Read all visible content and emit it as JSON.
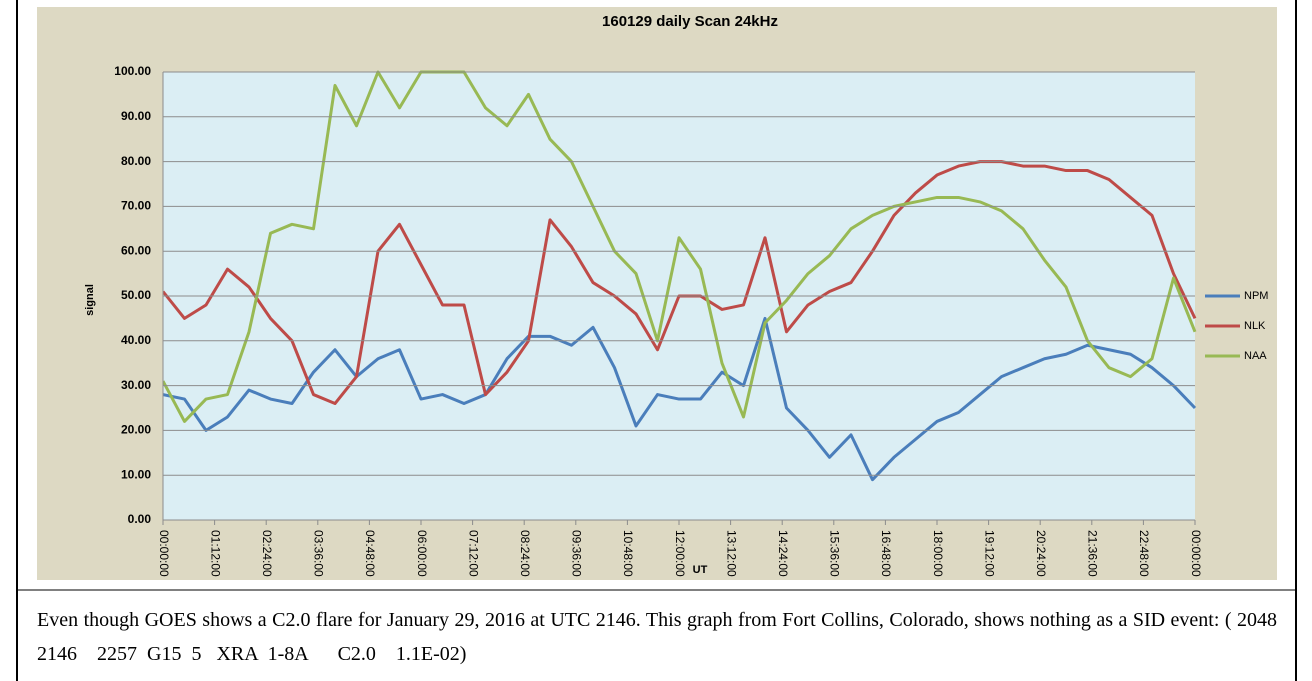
{
  "chart_data": {
    "type": "line",
    "title": "160129 daily Scan 24kHz",
    "ylabel": "signal",
    "xlabel": "UT",
    "x": [
      0,
      0.5,
      1,
      1.5,
      2,
      2.5,
      3,
      3.5,
      4,
      4.5,
      5,
      5.5,
      6,
      6.5,
      7,
      7.5,
      8,
      8.5,
      9,
      9.5,
      10,
      10.5,
      11,
      11.5,
      12,
      12.5,
      13,
      13.5,
      14,
      14.5,
      15,
      15.5,
      16,
      16.5,
      17,
      17.5,
      18,
      18.5,
      19,
      19.5,
      20,
      20.5,
      21,
      21.5,
      22,
      22.5,
      23,
      23.5,
      24
    ],
    "series": [
      {
        "name": "NPM",
        "color": "#4a7ebb",
        "values": [
          28,
          27,
          20,
          23,
          29,
          27,
          26,
          33,
          38,
          32,
          36,
          38,
          27,
          28,
          26,
          28,
          36,
          41,
          41,
          39,
          43,
          34,
          21,
          28,
          27,
          27,
          33,
          30,
          45,
          25,
          20,
          14,
          19,
          9,
          14,
          18,
          22,
          24,
          28,
          32,
          34,
          36,
          37,
          39,
          38,
          37,
          34,
          30,
          25
        ]
      },
      {
        "name": "NLK",
        "color": "#be4b48",
        "values": [
          51,
          45,
          48,
          56,
          52,
          45,
          40,
          28,
          26,
          32,
          60,
          66,
          57,
          48,
          48,
          28,
          33,
          40,
          67,
          61,
          53,
          50,
          46,
          38,
          50,
          50,
          47,
          48,
          63,
          42,
          48,
          51,
          53,
          60,
          68,
          73,
          77,
          79,
          80,
          80,
          79,
          79,
          78,
          78,
          76,
          72,
          68,
          55,
          45
        ]
      },
      {
        "name": "NAA",
        "color": "#98b954",
        "values": [
          31,
          22,
          27,
          28,
          42,
          64,
          66,
          65,
          97,
          88,
          100,
          92,
          100,
          100,
          100,
          92,
          88,
          95,
          85,
          80,
          70,
          60,
          55,
          40,
          63,
          56,
          35,
          23,
          44,
          49,
          55,
          59,
          65,
          68,
          70,
          71,
          72,
          72,
          71,
          69,
          65,
          58,
          52,
          40,
          34,
          32,
          36,
          54,
          42
        ]
      }
    ],
    "xlim": [
      0,
      24
    ],
    "xticks": [
      {
        "value": 0,
        "label": "00:00:00"
      },
      {
        "value": 1.2,
        "label": "01:12:00"
      },
      {
        "value": 2.4,
        "label": "02:24:00"
      },
      {
        "value": 3.6,
        "label": "03:36:00"
      },
      {
        "value": 4.8,
        "label": "04:48:00"
      },
      {
        "value": 6,
        "label": "06:00:00"
      },
      {
        "value": 7.2,
        "label": "07:12:00"
      },
      {
        "value": 8.4,
        "label": "08:24:00"
      },
      {
        "value": 9.6,
        "label": "09:36:00"
      },
      {
        "value": 10.8,
        "label": "10:48:00"
      },
      {
        "value": 12,
        "label": "12:00:00"
      },
      {
        "value": 13.2,
        "label": "13:12:00"
      },
      {
        "value": 14.4,
        "label": "14:24:00"
      },
      {
        "value": 15.6,
        "label": "15:36:00"
      },
      {
        "value": 16.8,
        "label": "16:48:00"
      },
      {
        "value": 18,
        "label": "18:00:00"
      },
      {
        "value": 19.2,
        "label": "19:12:00"
      },
      {
        "value": 20.4,
        "label": "20:24:00"
      },
      {
        "value": 21.6,
        "label": "21:36:00"
      },
      {
        "value": 22.8,
        "label": "22:48:00"
      },
      {
        "value": 24,
        "label": "00:00:00"
      }
    ],
    "ylim": [
      0,
      100
    ],
    "yticks": [
      {
        "value": 0,
        "label": "0.00"
      },
      {
        "value": 10,
        "label": "10.00"
      },
      {
        "value": 20,
        "label": "20.00"
      },
      {
        "value": 30,
        "label": "30.00"
      },
      {
        "value": 40,
        "label": "40.00"
      },
      {
        "value": 50,
        "label": "50.00"
      },
      {
        "value": 60,
        "label": "60.00"
      },
      {
        "value": 70,
        "label": "70.00"
      },
      {
        "value": 80,
        "label": "80.00"
      },
      {
        "value": 90,
        "label": "90.00"
      },
      {
        "value": 100,
        "label": "100.00"
      }
    ],
    "grid": true,
    "legend": "right"
  },
  "caption": "Even though GOES shows a C2.0 flare for January 29, 2016 at UTC 2146. This graph from Fort Collins, Colorado, shows nothing as a SID event: ( 2048   2146    2257  G15  5   XRA  1-8A      C2.0    1.1E-02)"
}
